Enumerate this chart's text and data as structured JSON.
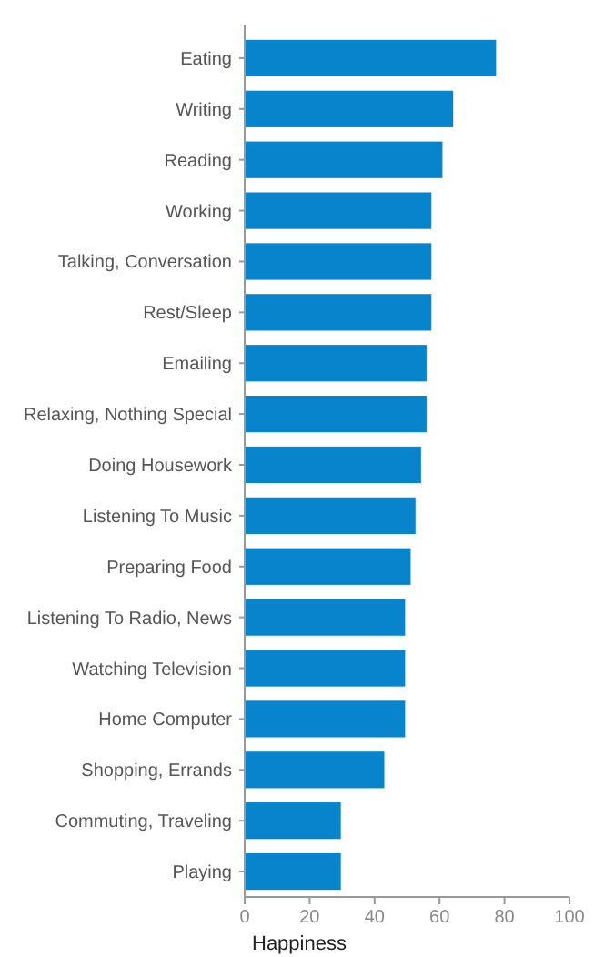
{
  "chart_data": {
    "type": "bar",
    "orientation": "horizontal",
    "xlabel": "Happiness",
    "categories": [
      "Eating",
      "Writing",
      "Reading",
      "Working",
      "Talking, Conversation",
      "Rest/Sleep",
      "Emailing",
      "Relaxing, Nothing Special",
      "Doing Housework",
      "Listening To Music",
      "Preparing Food",
      "Listening To Radio, News",
      "Watching Television",
      "Home Computer",
      "Shopping, Errands",
      "Commuting, Traveling",
      "Playing"
    ],
    "values": [
      77.4,
      64.2,
      60.9,
      57.5,
      57.5,
      57.5,
      56,
      56,
      54.3,
      52.6,
      51.1,
      49.4,
      49.4,
      49.4,
      43,
      29.6,
      29.6
    ],
    "color": "#0884cc",
    "xlim": [
      0,
      100
    ],
    "xticks": [
      0,
      20,
      40,
      60,
      80,
      100
    ],
    "grid": false
  }
}
